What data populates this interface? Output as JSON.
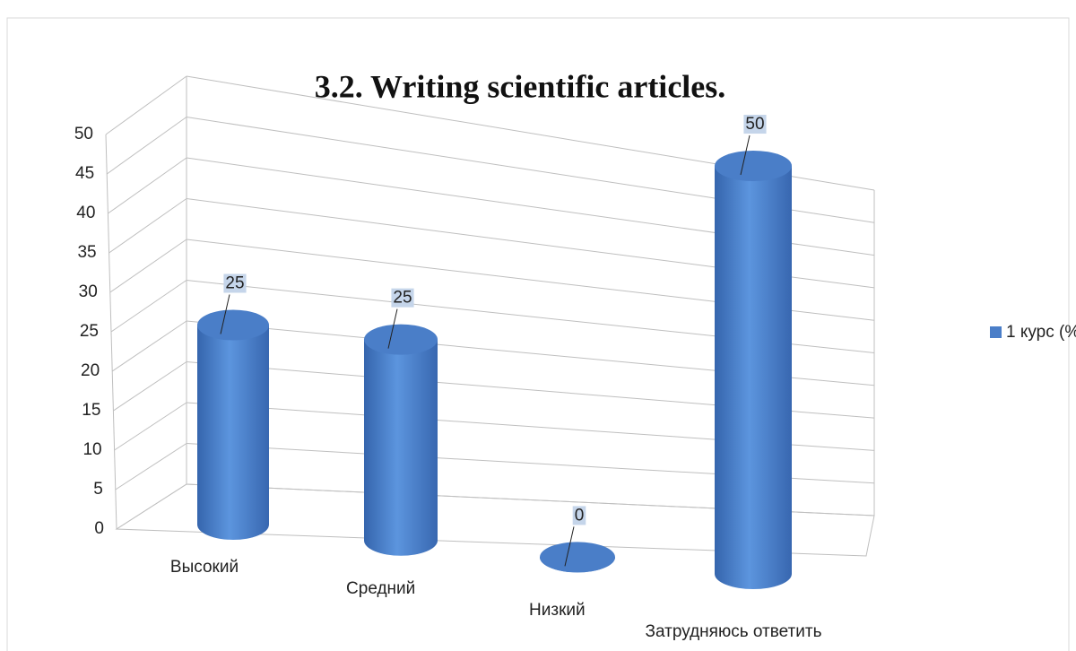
{
  "chart_data": {
    "type": "bar3d",
    "title": "3.2. Writing scientific articles.",
    "categories": [
      "Высокий",
      "Средний",
      "Низкий",
      "Затрудняюсь ответить"
    ],
    "series": [
      {
        "name": "1 курс (%)",
        "color": "#4a7ec8",
        "values": [
          25,
          25,
          0,
          50
        ]
      }
    ],
    "ylim": [
      0,
      50
    ],
    "yticks": [
      0,
      5,
      10,
      15,
      20,
      25,
      30,
      35,
      40,
      45,
      50
    ],
    "grid": true,
    "legend": "right"
  }
}
